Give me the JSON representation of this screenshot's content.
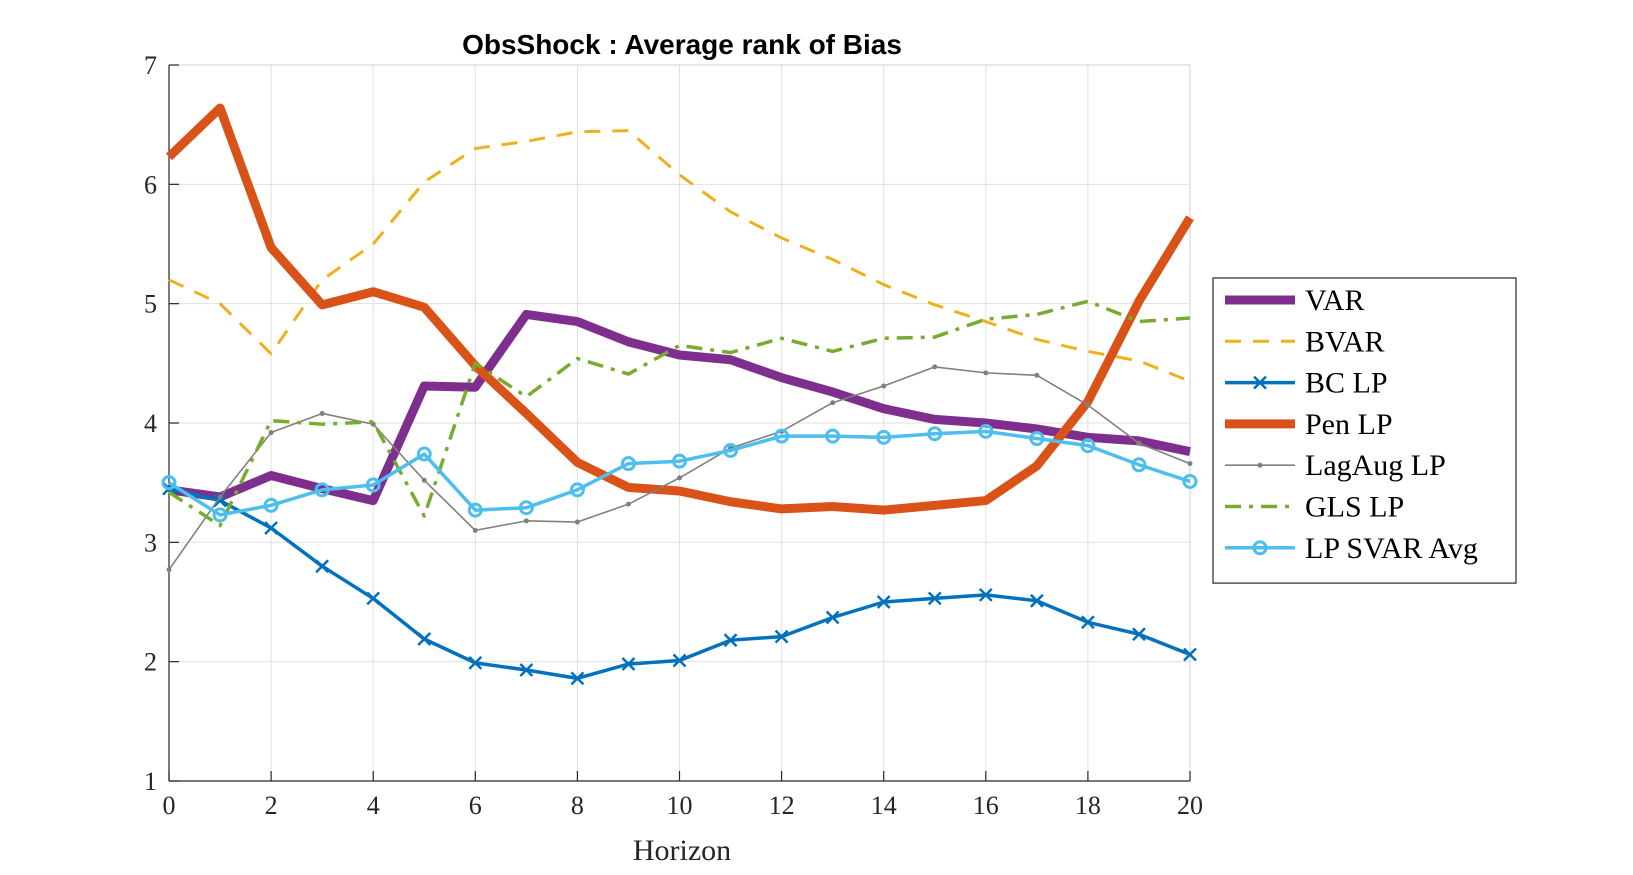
{
  "chart_data": {
    "type": "line",
    "title": "ObsShock : Average rank of Bias",
    "xlabel": "Horizon",
    "ylabel": "",
    "xlim": [
      0,
      20
    ],
    "ylim": [
      1,
      7
    ],
    "xticks": [
      0,
      2,
      4,
      6,
      8,
      10,
      12,
      14,
      16,
      18,
      20
    ],
    "yticks": [
      1,
      2,
      3,
      4,
      5,
      6,
      7
    ],
    "grid": true,
    "legend_position": "right",
    "x": [
      0,
      1,
      2,
      3,
      4,
      5,
      6,
      7,
      8,
      9,
      10,
      11,
      12,
      13,
      14,
      15,
      16,
      17,
      18,
      19,
      20
    ],
    "series": [
      {
        "name": "VAR",
        "color": "#7E2F8E",
        "style": "solid-thick",
        "values": [
          3.44,
          3.38,
          3.56,
          3.45,
          3.35,
          4.31,
          4.3,
          4.91,
          4.85,
          4.68,
          4.57,
          4.53,
          4.38,
          4.26,
          4.12,
          4.03,
          4.0,
          3.95,
          3.88,
          3.85,
          3.76
        ]
      },
      {
        "name": "BVAR",
        "color": "#EDB120",
        "style": "dashed",
        "values": [
          5.2,
          5.0,
          4.58,
          5.2,
          5.5,
          6.02,
          6.3,
          6.36,
          6.44,
          6.45,
          6.08,
          5.77,
          5.55,
          5.37,
          5.16,
          4.99,
          4.85,
          4.7,
          4.6,
          4.52,
          4.35
        ]
      },
      {
        "name": "BC LP",
        "color": "#0072BD",
        "style": "solid-x",
        "values": [
          3.45,
          3.35,
          3.12,
          2.8,
          2.53,
          2.19,
          1.99,
          1.93,
          1.86,
          1.98,
          2.01,
          2.18,
          2.21,
          2.37,
          2.5,
          2.53,
          2.56,
          2.51,
          2.33,
          2.23,
          2.06
        ]
      },
      {
        "name": "Pen LP",
        "color": "#D95319",
        "style": "solid-thick",
        "values": [
          6.23,
          6.64,
          5.47,
          4.99,
          5.1,
          4.97,
          4.48,
          4.08,
          3.67,
          3.46,
          3.43,
          3.34,
          3.28,
          3.3,
          3.27,
          3.31,
          3.35,
          3.64,
          4.18,
          5.02,
          5.72
        ]
      },
      {
        "name": "LagAug LP",
        "color": "#808080",
        "style": "solid-dot",
        "values": [
          2.77,
          3.38,
          3.92,
          4.08,
          3.99,
          3.52,
          3.1,
          3.18,
          3.17,
          3.32,
          3.54,
          3.79,
          3.93,
          4.17,
          4.31,
          4.47,
          4.42,
          4.4,
          4.15,
          3.83,
          3.66
        ]
      },
      {
        "name": "GLS LP",
        "color": "#77AC30",
        "style": "dashdot",
        "values": [
          3.42,
          3.14,
          4.02,
          3.99,
          4.01,
          3.22,
          4.5,
          4.22,
          4.54,
          4.41,
          4.65,
          4.59,
          4.71,
          4.6,
          4.71,
          4.72,
          4.87,
          4.91,
          5.02,
          4.85,
          4.88
        ]
      },
      {
        "name": "LP SVAR Avg",
        "color": "#4DBEEE",
        "style": "solid-circle",
        "values": [
          3.5,
          3.23,
          3.31,
          3.44,
          3.48,
          3.74,
          3.27,
          3.29,
          3.44,
          3.66,
          3.68,
          3.77,
          3.89,
          3.89,
          3.88,
          3.91,
          3.93,
          3.87,
          3.81,
          3.65,
          3.51
        ]
      }
    ]
  }
}
